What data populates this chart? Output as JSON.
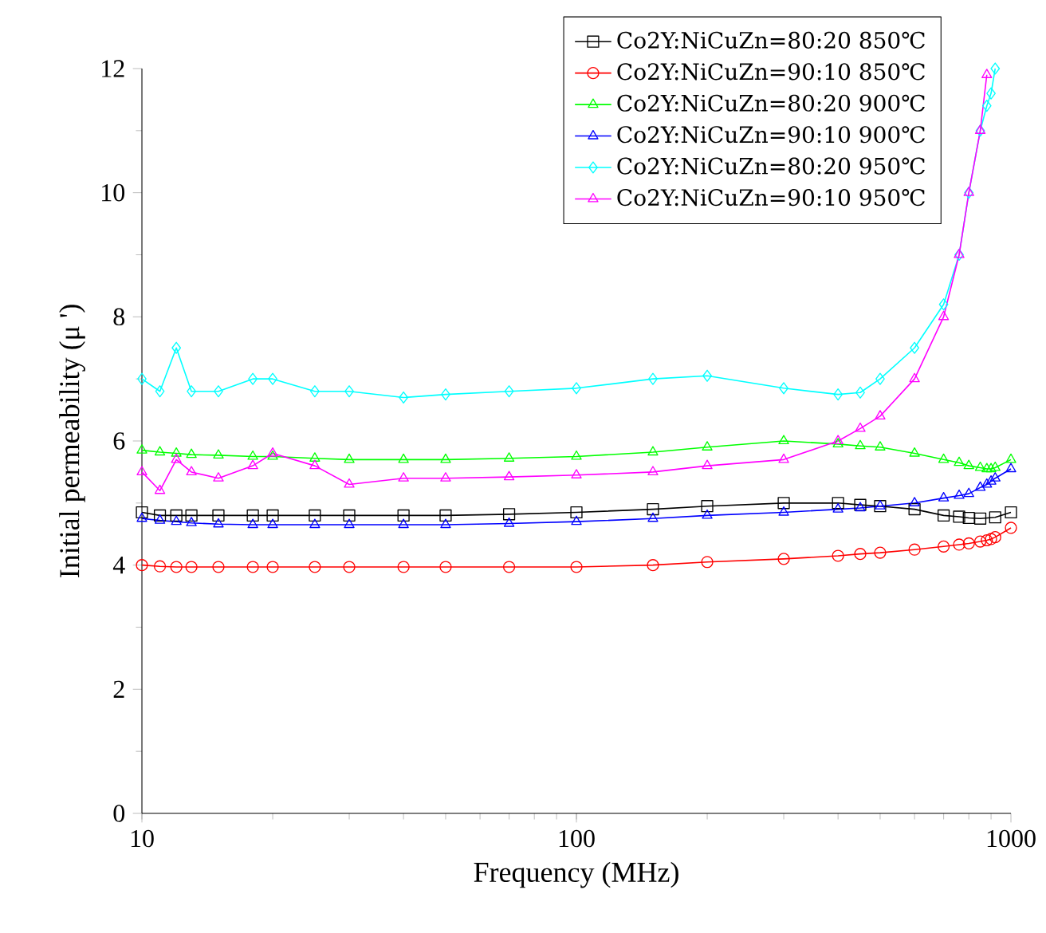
{
  "chart_data": {
    "type": "line",
    "xlabel": "Frequency (MHz)",
    "ylabel": "Initial permeability (μ ')",
    "log": "x",
    "xlim": [
      10,
      1000
    ],
    "xticks": [
      10,
      100,
      1000
    ],
    "ylim": [
      0,
      12
    ],
    "yticks": [
      0,
      2,
      4,
      6,
      8,
      10,
      12
    ],
    "legend": "top right",
    "line_style": "solid",
    "x": [
      10,
      11,
      12,
      13,
      15,
      18,
      20,
      25,
      30,
      40,
      50,
      70,
      100,
      150,
      200,
      300,
      400,
      450,
      500,
      600,
      700,
      760,
      800,
      850,
      880,
      900,
      920,
      1000
    ],
    "series": [
      {
        "name": "Co2Y:NiCuZn=80:20  850℃",
        "color": "#000000",
        "marker": "square",
        "values": [
          4.85,
          4.8,
          4.8,
          4.8,
          4.8,
          4.8,
          4.8,
          4.8,
          4.8,
          4.8,
          4.8,
          4.82,
          4.85,
          4.9,
          4.95,
          5.0,
          5.0,
          4.97,
          4.95,
          4.9,
          4.8,
          4.78,
          4.76,
          4.75,
          null,
          null,
          4.77,
          4.85
        ]
      },
      {
        "name": "Co2Y:NiCuZn=90:10  850℃",
        "color": "#ff0000",
        "marker": "circle",
        "values": [
          4.0,
          3.98,
          3.97,
          3.97,
          3.97,
          3.97,
          3.97,
          3.97,
          3.97,
          3.97,
          3.97,
          3.97,
          3.97,
          4.0,
          4.05,
          4.1,
          4.15,
          4.18,
          4.2,
          4.25,
          4.3,
          4.33,
          4.35,
          4.38,
          4.4,
          4.42,
          4.45,
          4.6
        ]
      },
      {
        "name": "Co2Y:NiCuZn=80:20  900℃",
        "color": "#00ff00",
        "marker": "triangle",
        "values": [
          5.85,
          5.82,
          5.8,
          5.78,
          5.77,
          5.75,
          5.75,
          5.72,
          5.7,
          5.7,
          5.7,
          5.72,
          5.75,
          5.82,
          5.9,
          6.0,
          5.95,
          5.92,
          5.9,
          5.8,
          5.7,
          5.65,
          5.6,
          5.57,
          5.55,
          5.55,
          5.57,
          5.7
        ]
      },
      {
        "name": "Co2Y:NiCuZn=90:10  900℃",
        "color": "#0000ff",
        "marker": "triangle",
        "values": [
          4.75,
          4.72,
          4.7,
          4.68,
          4.66,
          4.65,
          4.65,
          4.65,
          4.65,
          4.65,
          4.65,
          4.67,
          4.7,
          4.75,
          4.8,
          4.85,
          4.9,
          4.92,
          4.95,
          5.0,
          5.08,
          5.12,
          5.15,
          5.25,
          5.3,
          5.35,
          5.4,
          5.55
        ]
      },
      {
        "name": "Co2Y:NiCuZn=80:20  950℃",
        "color": "#00ffff",
        "marker": "diamond",
        "values": [
          7.0,
          6.8,
          7.5,
          6.8,
          6.8,
          7.0,
          7.0,
          6.8,
          6.8,
          6.7,
          6.75,
          6.8,
          6.85,
          7.0,
          7.05,
          6.85,
          6.75,
          6.78,
          7.0,
          7.5,
          8.2,
          9.0,
          10.0,
          11.0,
          11.4,
          11.6,
          12.0,
          null
        ]
      },
      {
        "name": "Co2Y:NiCuZn=90:10  950℃",
        "color": "#ff00ff",
        "marker": "triangle",
        "values": [
          5.5,
          5.2,
          5.7,
          5.5,
          5.4,
          5.6,
          5.8,
          5.6,
          5.3,
          5.4,
          5.4,
          5.42,
          5.45,
          5.5,
          5.6,
          5.7,
          6.0,
          6.2,
          6.4,
          7.0,
          8.0,
          9.0,
          10.0,
          11.0,
          11.9,
          null,
          null,
          null
        ]
      }
    ]
  }
}
